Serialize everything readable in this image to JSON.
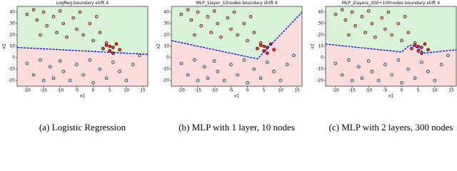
{
  "chart_data": [
    {
      "type": "scatter",
      "title": "LogReg boundary shift 4",
      "xlabel": "x1",
      "ylabel": "x2",
      "caption": "(a) Logistic Regression",
      "xlim": [
        -23,
        16.5
      ],
      "ylim": [
        -25,
        45
      ],
      "xticks": [
        -20,
        -15,
        -10,
        -5,
        0,
        5,
        10,
        15
      ],
      "yticks": [
        -20,
        -10,
        0,
        10,
        20,
        30,
        40
      ],
      "region_colors": {
        "above": "#d8f3d8",
        "below": "#fadcdc"
      },
      "boundary": {
        "color": "#0000ff",
        "x": [
          -23,
          16.5
        ],
        "values": [
          9,
          3
        ]
      },
      "series": [
        {
          "color": "#e8a07a",
          "x": [
            -20,
            -18,
            -17,
            -15,
            -14,
            -12,
            -11,
            -10,
            -9,
            -8,
            -6,
            -5,
            -4,
            -3,
            -1,
            0,
            1,
            2,
            4,
            -16
          ],
          "values": [
            38,
            42,
            33,
            40,
            28,
            36,
            22,
            41,
            30,
            18,
            35,
            25,
            40,
            20,
            30,
            15,
            36,
            22,
            13,
            20
          ]
        },
        {
          "color": "#a8d8e8",
          "x": [
            -20,
            -18,
            -16,
            -15,
            -13,
            -12,
            -10,
            -9,
            -7,
            -5,
            -3,
            -1,
            0,
            2,
            4,
            6,
            8,
            10,
            12,
            14
          ],
          "values": [
            -5,
            -15,
            -2,
            -20,
            -8,
            -18,
            -3,
            -12,
            -20,
            -6,
            -15,
            -2,
            -22,
            -10,
            -18,
            -4,
            -12,
            -20,
            -6,
            2
          ]
        },
        {
          "color": "#ff2020",
          "x": [
            3,
            4,
            5,
            6,
            6,
            7,
            8,
            5
          ],
          "values": [
            8,
            11,
            6,
            9,
            4,
            12,
            7,
            10
          ]
        }
      ]
    },
    {
      "type": "scatter",
      "title": "MLP_1layer_10nodes boundary shift 4",
      "xlabel": "x1",
      "ylabel": "x2",
      "caption": "(b) MLP with 1 layer, 10 nodes",
      "xlim": [
        -23,
        16.5
      ],
      "ylim": [
        -25,
        45
      ],
      "xticks": [
        -20,
        -15,
        -10,
        -5,
        0,
        5,
        10,
        15
      ],
      "yticks": [
        -20,
        -10,
        0,
        10,
        20,
        30,
        40
      ],
      "region_colors": {
        "above": "#d8f3d8",
        "below": "#fadcdc"
      },
      "boundary": {
        "color": "#0000ff",
        "x": [
          -23,
          3,
          16.5
        ],
        "values": [
          15,
          -1,
          40
        ]
      },
      "series": [
        {
          "color": "#e8a07a",
          "x": [
            -20,
            -18,
            -17,
            -15,
            -14,
            -12,
            -11,
            -10,
            -9,
            -8,
            -6,
            -5,
            -4,
            -3,
            -1,
            0,
            1,
            2,
            4,
            -16
          ],
          "values": [
            38,
            42,
            33,
            40,
            28,
            36,
            22,
            41,
            30,
            18,
            35,
            25,
            40,
            20,
            30,
            15,
            36,
            22,
            13,
            20
          ]
        },
        {
          "color": "#a8d8e8",
          "x": [
            -20,
            -18,
            -16,
            -15,
            -13,
            -12,
            -10,
            -9,
            -7,
            -5,
            -3,
            -1,
            0,
            2,
            4,
            6,
            8,
            10,
            12,
            14
          ],
          "values": [
            -5,
            -15,
            -2,
            -20,
            -8,
            -18,
            -3,
            -12,
            -20,
            -6,
            -15,
            -2,
            -22,
            -10,
            -18,
            -4,
            -12,
            -20,
            -6,
            2
          ]
        },
        {
          "color": "#ff2020",
          "x": [
            3,
            4,
            5,
            6,
            6,
            7,
            8,
            5
          ],
          "values": [
            8,
            11,
            6,
            9,
            4,
            12,
            7,
            10
          ]
        }
      ]
    },
    {
      "type": "scatter",
      "title": "MLP_2layers_200+100nodes boundary shift 4",
      "xlabel": "x1",
      "ylabel": "x2",
      "caption": "(c) MLP with 2 layers, 300 nodes",
      "xlim": [
        -23,
        16.5
      ],
      "ylim": [
        -25,
        45
      ],
      "xticks": [
        -20,
        -15,
        -10,
        -5,
        0,
        5,
        10,
        15
      ],
      "yticks": [
        -20,
        -10,
        0,
        10,
        20,
        30,
        40
      ],
      "region_colors": {
        "above": "#d8f3d8",
        "below": "#fadcdc"
      },
      "boundary": {
        "color": "#0000ff",
        "x": [
          -23,
          0,
          2,
          3,
          5,
          7,
          10,
          16.5
        ],
        "values": [
          12,
          5,
          10,
          11,
          8,
          4,
          5,
          7
        ]
      },
      "series": [
        {
          "color": "#e8a07a",
          "x": [
            -20,
            -18,
            -17,
            -15,
            -14,
            -12,
            -11,
            -10,
            -9,
            -8,
            -6,
            -5,
            -4,
            -3,
            -1,
            0,
            1,
            2,
            4,
            -16
          ],
          "values": [
            38,
            42,
            33,
            40,
            28,
            36,
            22,
            41,
            30,
            18,
            35,
            25,
            40,
            20,
            30,
            15,
            36,
            22,
            13,
            20
          ]
        },
        {
          "color": "#a8d8e8",
          "x": [
            -20,
            -18,
            -16,
            -15,
            -13,
            -12,
            -10,
            -9,
            -7,
            -5,
            -3,
            -1,
            0,
            2,
            4,
            6,
            8,
            10,
            12,
            14
          ],
          "values": [
            -5,
            -15,
            -2,
            -20,
            -8,
            -18,
            -3,
            -12,
            -20,
            -6,
            -15,
            -2,
            -22,
            -10,
            -18,
            -4,
            -12,
            -20,
            -6,
            2
          ]
        },
        {
          "color": "#ff2020",
          "x": [
            3,
            4,
            5,
            6,
            6,
            7,
            8,
            5
          ],
          "values": [
            8,
            11,
            6,
            9,
            4,
            12,
            7,
            10
          ]
        }
      ]
    }
  ]
}
